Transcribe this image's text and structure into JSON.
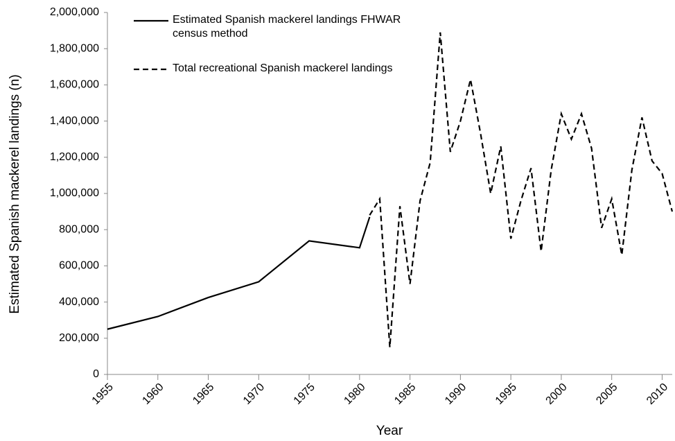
{
  "chart_data": {
    "type": "line",
    "x_label": "Year",
    "y_label": "Estimated Spanish mackerel landings (n)",
    "xlim": [
      1955,
      2011
    ],
    "xticks": [
      1955,
      1960,
      1965,
      1970,
      1975,
      1980,
      1985,
      1990,
      1995,
      2000,
      2005,
      2010
    ],
    "ylim": [
      0,
      2000000
    ],
    "yticks": [
      0,
      {
        "value": 200000,
        "label": "200,000"
      },
      {
        "value": 400000,
        "label": "400,000"
      },
      {
        "value": 600000,
        "label": "600,000"
      },
      {
        "value": 800000,
        "label": "800,000"
      },
      {
        "value": 1000000,
        "label": "1,000,000"
      },
      {
        "value": 1200000,
        "label": "1,200,000"
      },
      {
        "value": 1400000,
        "label": "1,400,000"
      },
      {
        "value": 1600000,
        "label": "1,600,000"
      },
      {
        "value": 1800000,
        "label": "1,800,000"
      },
      {
        "value": 2000000,
        "label": "2,000,000"
      }
    ],
    "series": [
      {
        "name": "Estimated Spanish mackerel landings FHWAR census method",
        "color": "#000000",
        "dash": false,
        "x": [
          1955,
          1960,
          1965,
          1970,
          1975,
          1980,
          1981
        ],
        "values": [
          250000,
          320000,
          425000,
          512000,
          738000,
          700000,
          870000
        ]
      },
      {
        "name": "Total recreational Spanish mackerel landings",
        "color": "#000000",
        "dash": true,
        "x": [
          1981,
          1982,
          1983,
          1984,
          1985,
          1986,
          1987,
          1988,
          1989,
          1990,
          1991,
          1992,
          1993,
          1994,
          1995,
          1996,
          1997,
          1998,
          1999,
          2000,
          2001,
          2002,
          2003,
          2004,
          2005,
          2006,
          2007,
          2008,
          2009,
          2010,
          2011
        ],
        "values": [
          880000,
          970000,
          150000,
          930000,
          500000,
          960000,
          1170000,
          1890000,
          1230000,
          1400000,
          1630000,
          1330000,
          1000000,
          1260000,
          750000,
          960000,
          1140000,
          680000,
          1130000,
          1440000,
          1300000,
          1440000,
          1250000,
          810000,
          970000,
          660000,
          1130000,
          1420000,
          1180000,
          1110000,
          900000
        ]
      }
    ]
  }
}
